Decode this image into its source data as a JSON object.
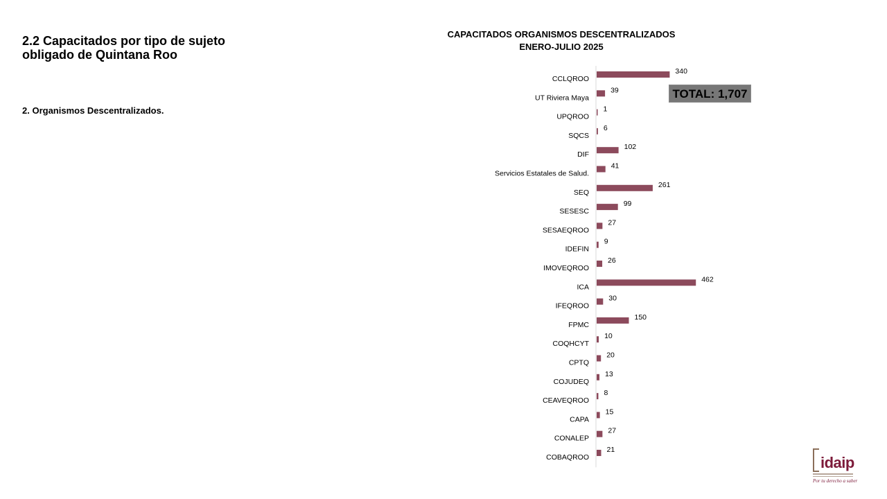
{
  "slide": {
    "title_line1": "2.2 Capacitados por tipo de sujeto",
    "title_line2": "obligado de Quintana Roo",
    "section_label": "2. Organismos Descentralizados."
  },
  "total_label": "TOTAL: 1,707",
  "logo": {
    "word": "idaip",
    "tagline": "Por tu derecho a saber"
  },
  "colors": {
    "bar": "#8c4a5c",
    "axis": "#d9d9d9",
    "total_box": "#777777"
  },
  "chart_data": {
    "type": "bar",
    "orientation": "horizontal",
    "title_line1": "CAPACITADOS ORGANISMOS DESCENTRALIZADOS",
    "title_line2": "ENERO-JULIO 2025",
    "categories": [
      "CCLQROO",
      "UT Riviera Maya",
      "UPQROO",
      "SQCS",
      "DIF",
      "Servicios Estatales de Salud.",
      "SEQ",
      "SESESC",
      "SESAEQROO",
      "IDEFIN",
      "IMOVEQROO",
      "ICA",
      "IFEQROO",
      "FPMC",
      "COQHCYT",
      "CPTQ",
      "COJUDEQ",
      "CEAVEQROO",
      "CAPA",
      "CONALEP",
      "COBAQROO"
    ],
    "values": [
      340,
      39,
      1,
      6,
      102,
      41,
      261,
      99,
      27,
      9,
      26,
      462,
      30,
      150,
      10,
      20,
      13,
      8,
      15,
      27,
      21
    ],
    "data_labels": true,
    "grid": false,
    "legend": "none"
  }
}
